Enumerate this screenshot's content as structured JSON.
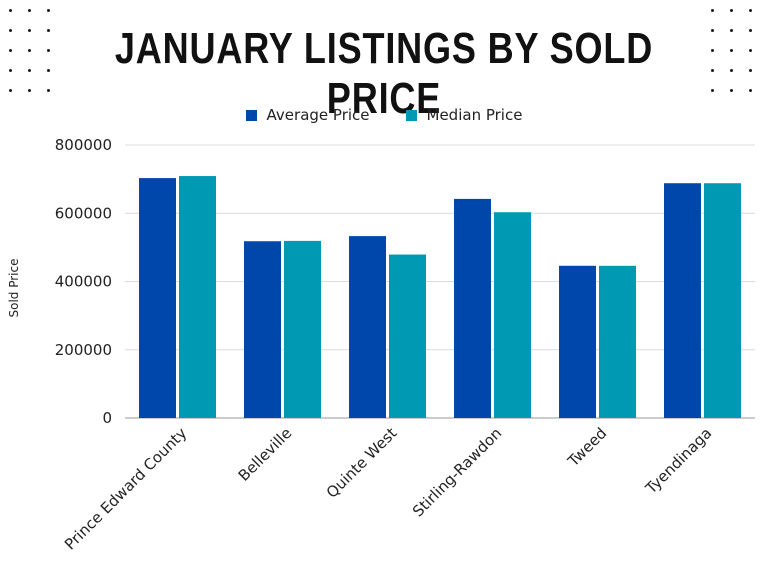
{
  "colors": {
    "average": "#0047AB",
    "median": "#0099B4",
    "grid": "#dcdcdc",
    "axis": "#9a9a9a"
  },
  "chart_data": {
    "type": "bar",
    "title": "JANUARY LISTINGS BY SOLD PRICE",
    "ylabel": "Sold Price",
    "xlabel": "",
    "categories": [
      "Prince Edward County",
      "Belleville",
      "Quinte West",
      "Stirling-Rawdon",
      "Tweed",
      "Tyendinaga"
    ],
    "series": [
      {
        "name": "Average Price",
        "values": [
          703000,
          518000,
          533000,
          642000,
          446000,
          688000
        ]
      },
      {
        "name": "Median Price",
        "values": [
          709000,
          519000,
          479000,
          603000,
          446000,
          688000
        ]
      }
    ],
    "ylim": [
      0,
      800000
    ],
    "yticks": [
      "800000",
      "600000",
      "400000",
      "200000",
      "0"
    ],
    "grid": true,
    "legend": "top-center"
  }
}
